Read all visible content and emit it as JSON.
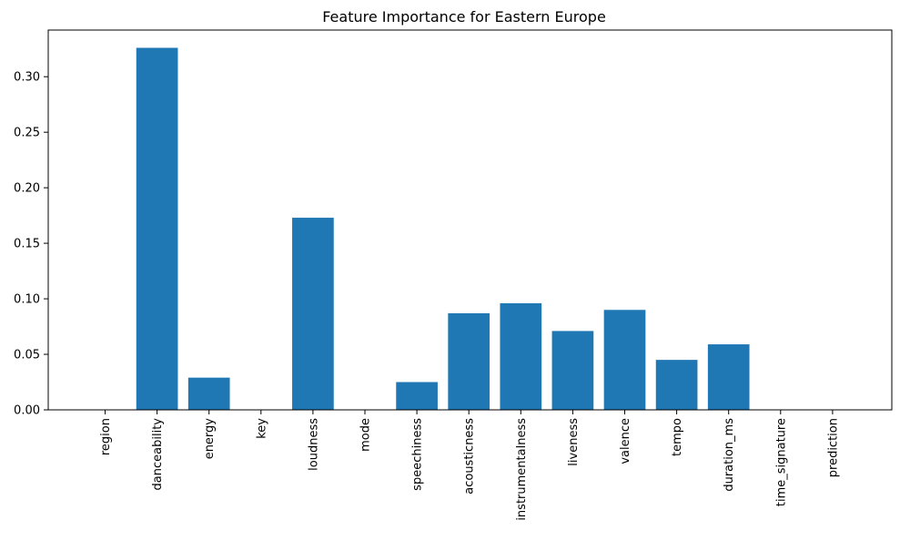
{
  "chart_data": {
    "type": "bar",
    "title": "Feature Importance for Eastern Europe",
    "xlabel": "",
    "ylabel": "",
    "categories": [
      "region",
      "danceability",
      "energy",
      "key",
      "loudness",
      "mode",
      "speechiness",
      "acousticness",
      "instrumentalness",
      "liveness",
      "valence",
      "tempo",
      "duration_ms",
      "time_signature",
      "prediction"
    ],
    "values": [
      0.0,
      0.326,
      0.029,
      0.0,
      0.173,
      0.0,
      0.025,
      0.087,
      0.096,
      0.071,
      0.09,
      0.045,
      0.059,
      0.0,
      0.0
    ],
    "ylim": [
      0,
      0.342
    ],
    "yticks": [
      "0.00",
      "0.05",
      "0.10",
      "0.15",
      "0.20",
      "0.25",
      "0.30"
    ],
    "bar_color": "#1f77b4",
    "grid": false,
    "legend": "none"
  }
}
